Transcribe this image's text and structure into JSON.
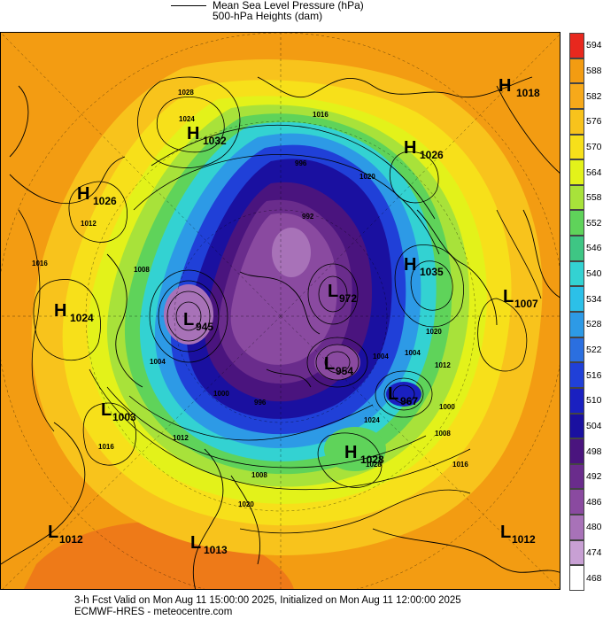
{
  "legend": {
    "line_label": "Mean Sea Level Pressure (hPa)",
    "fill_label": "500-hPa Heights (dam)"
  },
  "colorbar": {
    "ticks": [
      "594",
      "588",
      "582",
      "576",
      "570",
      "564",
      "558",
      "552",
      "546",
      "540",
      "534",
      "528",
      "522",
      "516",
      "510",
      "504",
      "498",
      "492",
      "486",
      "480",
      "474",
      "468"
    ],
    "colors": [
      "#e8281e",
      "#f39c12",
      "#f7a91a",
      "#f8c31c",
      "#f7e01a",
      "#e3f21a",
      "#a8e23a",
      "#5fd35a",
      "#3ec684",
      "#33d2d2",
      "#2cc0e8",
      "#2d9ae6",
      "#2b6fe0",
      "#2040d8",
      "#1a20c0",
      "#1a10a0",
      "#4a147e",
      "#6a2c8c",
      "#8a4aa0",
      "#a872b8",
      "#c8a0d4",
      "#ffffff"
    ]
  },
  "pressure_systems": [
    {
      "type": "H",
      "value": "1018"
    },
    {
      "type": "H",
      "value": "1032"
    },
    {
      "type": "H",
      "value": "1026"
    },
    {
      "type": "H",
      "value": "1026"
    },
    {
      "type": "H",
      "value": "1035"
    },
    {
      "type": "L",
      "value": "1007"
    },
    {
      "type": "H",
      "value": "1024"
    },
    {
      "type": "L",
      "value": "945"
    },
    {
      "type": "L",
      "value": "972"
    },
    {
      "type": "L",
      "value": "954"
    },
    {
      "type": "L",
      "value": "967"
    },
    {
      "type": "L",
      "value": "1003"
    },
    {
      "type": "H",
      "value": "1028"
    },
    {
      "type": "L",
      "value": "1012"
    },
    {
      "type": "L",
      "value": "1013"
    },
    {
      "type": "L",
      "value": "1012"
    }
  ],
  "isobar_labels": [
    "1028",
    "1024",
    "1020",
    "1016",
    "1012",
    "1008",
    "1004",
    "1000",
    "996",
    "992",
    "1016",
    "1020",
    "1008",
    "1004",
    "1012",
    "1016",
    "1020",
    "1024",
    "1028",
    "1016",
    "1012",
    "1008",
    "1004",
    "1000",
    "996"
  ],
  "footer": {
    "line1": "3-h Fcst Valid on Mon Aug 11 15:00:00 2025, Initialized on Mon Aug 11 12:00:00 2025",
    "line2": "ECMWF-HRES - meteocentre.com"
  }
}
